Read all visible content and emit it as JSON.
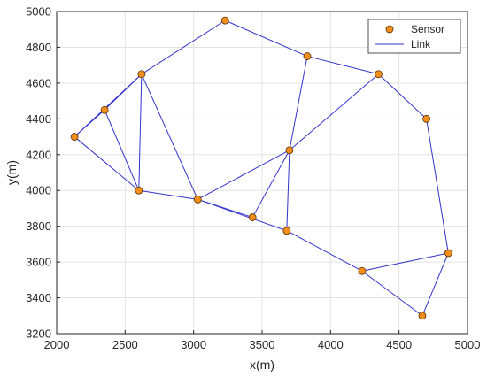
{
  "chart_data": {
    "type": "scatter",
    "xlabel": "x(m)",
    "ylabel": "y(m)",
    "xlim": [
      2000,
      5000
    ],
    "ylim": [
      3200,
      5000
    ],
    "xticks": [
      2000,
      2500,
      3000,
      3500,
      4000,
      4500,
      5000
    ],
    "yticks": [
      3200,
      3400,
      3600,
      3800,
      4000,
      4200,
      4400,
      4600,
      4800,
      5000
    ],
    "xtick_labels": [
      "2000",
      "2500",
      "3000",
      "3500",
      "4000",
      "4500",
      "5000"
    ],
    "ytick_labels": [
      "3200",
      "3400",
      "3600",
      "3800",
      "4000",
      "4200",
      "4400",
      "4600",
      "4800",
      "5000"
    ],
    "grid": true,
    "legend_position": "top-right",
    "legend": [
      {
        "label": "Sensor",
        "kind": "marker"
      },
      {
        "label": "Link",
        "kind": "line"
      }
    ],
    "colors": {
      "marker_fill": "#f28e1c",
      "marker_edge": "#5a3000",
      "link": "#3333cc",
      "grid": "#e3e3e3",
      "axis": "#262626"
    },
    "sensors": [
      {
        "x": 2130,
        "y": 4300
      },
      {
        "x": 2350,
        "y": 4450
      },
      {
        "x": 2620,
        "y": 4650
      },
      {
        "x": 2600,
        "y": 4000
      },
      {
        "x": 3030,
        "y": 3950
      },
      {
        "x": 3230,
        "y": 4950
      },
      {
        "x": 3430,
        "y": 3850
      },
      {
        "x": 3680,
        "y": 3775
      },
      {
        "x": 3700,
        "y": 4225
      },
      {
        "x": 3830,
        "y": 4750
      },
      {
        "x": 4350,
        "y": 4650
      },
      {
        "x": 4700,
        "y": 4400
      },
      {
        "x": 4230,
        "y": 3550
      },
      {
        "x": 4860,
        "y": 3650
      },
      {
        "x": 4670,
        "y": 3300
      }
    ],
    "links": [
      [
        0,
        1
      ],
      [
        0,
        2
      ],
      [
        0,
        3
      ],
      [
        1,
        2
      ],
      [
        1,
        3
      ],
      [
        2,
        3
      ],
      [
        2,
        4
      ],
      [
        2,
        5
      ],
      [
        3,
        4
      ],
      [
        4,
        6
      ],
      [
        4,
        7
      ],
      [
        4,
        8
      ],
      [
        5,
        9
      ],
      [
        6,
        8
      ],
      [
        7,
        8
      ],
      [
        7,
        12
      ],
      [
        8,
        9
      ],
      [
        8,
        10
      ],
      [
        9,
        10
      ],
      [
        10,
        11
      ],
      [
        11,
        13
      ],
      [
        12,
        13
      ],
      [
        12,
        14
      ],
      [
        13,
        14
      ]
    ]
  }
}
